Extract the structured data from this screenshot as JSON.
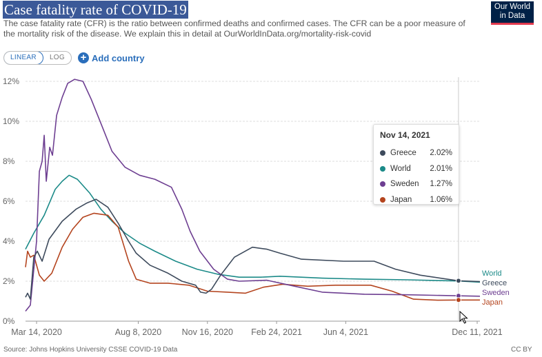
{
  "header": {
    "title": "Case fatality rate of COVID-19",
    "subtitle": "The case fatality rate (CFR) is the ratio between confirmed deaths and confirmed cases. The CFR can be a poor measure of the mortality risk of the disease. We explain this in detail at OurWorldInData.org/mortality-risk-covid",
    "logo_line1": "Our World",
    "logo_line2": "in Data"
  },
  "controls": {
    "linear_label": "LINEAR",
    "log_label": "LOG",
    "add_country_label": "Add country"
  },
  "tooltip": {
    "date": "Nov 14, 2021",
    "rows": [
      {
        "name": "Greece",
        "value": "2.02%",
        "color": "#3d4a5c"
      },
      {
        "name": "World",
        "value": "2.01%",
        "color": "#1b8a88"
      },
      {
        "name": "Sweden",
        "value": "1.27%",
        "color": "#6d3e91"
      },
      {
        "name": "Japan",
        "value": "1.06%",
        "color": "#b4441e"
      }
    ]
  },
  "footer": {
    "source": "Source: Johns Hopkins University CSSE COVID-19 Data",
    "license": "CC BY"
  },
  "colors": {
    "title_bg": "#3b5998",
    "accent": "#2a6ebb",
    "greece": "#3d4a5c",
    "world": "#1b8a88",
    "sweden": "#6d3e91",
    "japan": "#b4441e"
  },
  "chart_data": {
    "type": "line",
    "title": "Case fatality rate of COVID-19",
    "x_axis_type": "date",
    "xlim": [
      "2020-02-27",
      "2021-12-15"
    ],
    "ylim": [
      0,
      12
    ],
    "yticks": [
      0,
      2,
      4,
      6,
      8,
      10,
      12
    ],
    "ytick_labels": [
      "0%",
      "2%",
      "4%",
      "6%",
      "8%",
      "10%",
      "12%"
    ],
    "xticks": [
      "2020-03-14",
      "2020-08-08",
      "2020-11-16",
      "2021-02-24",
      "2021-06-04",
      "2021-12-11"
    ],
    "xtick_labels": [
      "Mar 14, 2020",
      "Aug 8, 2020",
      "Nov 16, 2020",
      "Feb 24, 2021",
      "Jun 4, 2021",
      "Dec 11, 2021"
    ],
    "grid": "horizontal",
    "legend": "line-end labels at right",
    "hover_date": "2021-11-14",
    "series": [
      {
        "name": "World",
        "color": "#1b8a88",
        "points": [
          [
            "2020-02-27",
            3.6
          ],
          [
            "2020-03-10",
            4.4
          ],
          [
            "2020-03-25",
            5.3
          ],
          [
            "2020-04-10",
            6.6
          ],
          [
            "2020-04-20",
            7.0
          ],
          [
            "2020-04-30",
            7.3
          ],
          [
            "2020-05-12",
            7.1
          ],
          [
            "2020-05-30",
            6.4
          ],
          [
            "2020-06-15",
            5.6
          ],
          [
            "2020-07-01",
            5.0
          ],
          [
            "2020-07-20",
            4.4
          ],
          [
            "2020-08-10",
            3.9
          ],
          [
            "2020-09-01",
            3.5
          ],
          [
            "2020-10-01",
            3.0
          ],
          [
            "2020-11-01",
            2.6
          ],
          [
            "2020-12-01",
            2.35
          ],
          [
            "2021-01-01",
            2.2
          ],
          [
            "2021-02-01",
            2.2
          ],
          [
            "2021-03-01",
            2.25
          ],
          [
            "2021-05-01",
            2.15
          ],
          [
            "2021-07-01",
            2.1
          ],
          [
            "2021-09-01",
            2.07
          ],
          [
            "2021-11-14",
            2.01
          ],
          [
            "2021-12-15",
            1.95
          ]
        ]
      },
      {
        "name": "Greece",
        "color": "#3d4a5c",
        "points": [
          [
            "2020-02-27",
            1.2
          ],
          [
            "2020-03-01",
            1.4
          ],
          [
            "2020-03-05",
            1.1
          ],
          [
            "2020-03-10",
            3.2
          ],
          [
            "2020-03-15",
            3.5
          ],
          [
            "2020-03-22",
            3.0
          ],
          [
            "2020-04-01",
            4.1
          ],
          [
            "2020-04-20",
            5.0
          ],
          [
            "2020-05-10",
            5.6
          ],
          [
            "2020-05-25",
            5.9
          ],
          [
            "2020-06-08",
            6.1
          ],
          [
            "2020-06-25",
            5.7
          ],
          [
            "2020-07-10",
            4.9
          ],
          [
            "2020-07-25",
            4.0
          ],
          [
            "2020-08-05",
            3.4
          ],
          [
            "2020-08-25",
            2.8
          ],
          [
            "2020-09-20",
            2.4
          ],
          [
            "2020-10-10",
            2.0
          ],
          [
            "2020-10-30",
            1.8
          ],
          [
            "2020-11-06",
            1.45
          ],
          [
            "2020-11-14",
            1.4
          ],
          [
            "2020-11-22",
            1.6
          ],
          [
            "2020-12-05",
            2.3
          ],
          [
            "2020-12-25",
            3.2
          ],
          [
            "2021-01-20",
            3.7
          ],
          [
            "2021-02-10",
            3.6
          ],
          [
            "2021-03-01",
            3.4
          ],
          [
            "2021-04-01",
            3.1
          ],
          [
            "2021-06-01",
            3.0
          ],
          [
            "2021-07-15",
            3.0
          ],
          [
            "2021-08-15",
            2.6
          ],
          [
            "2021-09-20",
            2.3
          ],
          [
            "2021-11-14",
            2.02
          ],
          [
            "2021-12-15",
            1.98
          ]
        ]
      },
      {
        "name": "Sweden",
        "color": "#6d3e91",
        "points": [
          [
            "2020-02-27",
            0.5
          ],
          [
            "2020-03-05",
            0.8
          ],
          [
            "2020-03-14",
            4.0
          ],
          [
            "2020-03-18",
            7.5
          ],
          [
            "2020-03-22",
            8.0
          ],
          [
            "2020-03-25",
            9.3
          ],
          [
            "2020-03-28",
            7.0
          ],
          [
            "2020-04-02",
            8.7
          ],
          [
            "2020-04-06",
            8.3
          ],
          [
            "2020-04-12",
            10.3
          ],
          [
            "2020-04-20",
            11.2
          ],
          [
            "2020-04-28",
            11.9
          ],
          [
            "2020-05-08",
            12.1
          ],
          [
            "2020-05-20",
            12.0
          ],
          [
            "2020-06-01",
            11.1
          ],
          [
            "2020-06-15",
            9.9
          ],
          [
            "2020-07-01",
            8.5
          ],
          [
            "2020-07-20",
            7.7
          ],
          [
            "2020-08-10",
            7.3
          ],
          [
            "2020-09-01",
            7.1
          ],
          [
            "2020-09-25",
            6.7
          ],
          [
            "2020-10-10",
            5.6
          ],
          [
            "2020-10-22",
            4.5
          ],
          [
            "2020-11-05",
            3.5
          ],
          [
            "2020-11-25",
            2.6
          ],
          [
            "2020-12-15",
            2.1
          ],
          [
            "2021-01-01",
            2.0
          ],
          [
            "2021-02-10",
            2.05
          ],
          [
            "2021-03-15",
            1.8
          ],
          [
            "2021-05-01",
            1.45
          ],
          [
            "2021-07-01",
            1.35
          ],
          [
            "2021-09-01",
            1.32
          ],
          [
            "2021-11-14",
            1.27
          ],
          [
            "2021-12-15",
            1.25
          ]
        ]
      },
      {
        "name": "Japan",
        "color": "#b4441e",
        "points": [
          [
            "2020-02-27",
            2.7
          ],
          [
            "2020-03-01",
            3.5
          ],
          [
            "2020-03-05",
            3.2
          ],
          [
            "2020-03-10",
            3.3
          ],
          [
            "2020-03-18",
            2.3
          ],
          [
            "2020-03-25",
            2.0
          ],
          [
            "2020-04-05",
            2.4
          ],
          [
            "2020-04-20",
            3.7
          ],
          [
            "2020-05-05",
            4.6
          ],
          [
            "2020-05-20",
            5.2
          ],
          [
            "2020-06-05",
            5.4
          ],
          [
            "2020-06-25",
            5.3
          ],
          [
            "2020-07-10",
            4.7
          ],
          [
            "2020-07-25",
            3.0
          ],
          [
            "2020-08-05",
            2.1
          ],
          [
            "2020-08-25",
            1.9
          ],
          [
            "2020-09-20",
            1.9
          ],
          [
            "2020-10-20",
            1.8
          ],
          [
            "2020-11-16",
            1.5
          ],
          [
            "2020-12-15",
            1.45
          ],
          [
            "2021-01-10",
            1.4
          ],
          [
            "2021-02-05",
            1.7
          ],
          [
            "2021-03-05",
            1.85
          ],
          [
            "2021-04-10",
            1.75
          ],
          [
            "2021-05-20",
            1.8
          ],
          [
            "2021-07-10",
            1.8
          ],
          [
            "2021-08-10",
            1.5
          ],
          [
            "2021-09-10",
            1.1
          ],
          [
            "2021-10-15",
            1.05
          ],
          [
            "2021-11-14",
            1.06
          ],
          [
            "2021-12-15",
            1.06
          ]
        ]
      }
    ]
  }
}
